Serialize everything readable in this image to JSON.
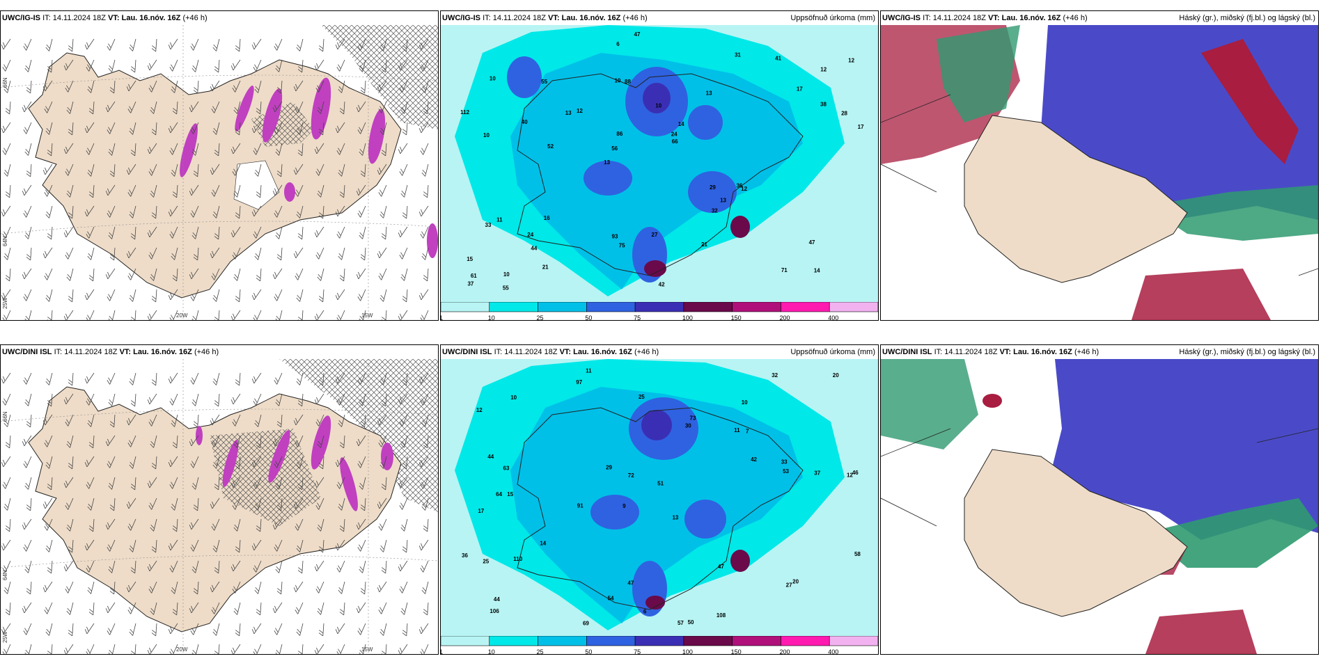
{
  "panels": [
    {
      "id": "p1",
      "model": "UWC/IG-IS",
      "it_label": "IT:",
      "it": "14.11.2024 18Z",
      "vt_label": "VT:",
      "vt": "Lau. 16.nóv. 16Z",
      "lead": "(+46 h)",
      "right_title": "",
      "type": "wind"
    },
    {
      "id": "p2",
      "model": "UWC/IG-IS",
      "it_label": "IT:",
      "it": "14.11.2024 18Z",
      "vt_label": "VT:",
      "vt": "Lau. 16.nóv. 16Z",
      "lead": "(+46 h)",
      "right_title": "Uppsöfnuð úrkoma (mm)",
      "type": "precip"
    },
    {
      "id": "p3",
      "model": "UWC/IG-IS",
      "it_label": "IT:",
      "it": "14.11.2024 18Z",
      "vt_label": "VT:",
      "vt": "Lau. 16.nóv. 16Z",
      "lead": "(+46 h)",
      "right_title": "Háský (gr.), miðský (fj.bl.) og lágský (bl.)",
      "type": "cloud"
    },
    {
      "id": "p4",
      "model": "UWC/DINI ISL",
      "it_label": "IT:",
      "it": "14.11.2024 18Z",
      "vt_label": "VT:",
      "vt": "Lau. 16.nóv. 16Z",
      "lead": "(+46 h)",
      "right_title": "",
      "type": "wind"
    },
    {
      "id": "p5",
      "model": "UWC/DINI ISL",
      "it_label": "IT:",
      "it": "14.11.2024 18Z",
      "vt_label": "VT:",
      "vt": "Lau. 16.nóv. 16Z",
      "lead": "(+46 h)",
      "right_title": "Uppsöfnuð úrkoma (mm)",
      "type": "precip"
    },
    {
      "id": "p6",
      "model": "UWC/DINI ISL",
      "it_label": "IT:",
      "it": "14.11.2024 18Z",
      "vt_label": "VT:",
      "vt": "Lau. 16.nóv. 16Z",
      "lead": "(+46 h)",
      "right_title": "Háský (gr.), miðský (fj.bl.) og lágský (bl.)",
      "type": "cloud"
    }
  ],
  "axis_labels": {
    "lon_20w": "20W",
    "lon_15w": "15W",
    "lat_66n": "66N",
    "lat_64n": "64N",
    "lon_25w": "25W"
  },
  "colorbar": {
    "ticks": [
      "1",
      "10",
      "25",
      "50",
      "75",
      "100",
      "150",
      "200",
      "400"
    ],
    "colors": [
      "#b8f4f4",
      "#00e8e8",
      "#00c0e8",
      "#2f62e0",
      "#3a2fb4",
      "#6a0a4a",
      "#b0107a",
      "#ff1ab0",
      "#f2b2f0"
    ]
  },
  "precip_values_top": [
    "14",
    "10",
    "12",
    "13",
    "13",
    "10",
    "10",
    "10",
    "11",
    "12",
    "15",
    "44",
    "88",
    "14",
    "12",
    "10",
    "6",
    "17",
    "29",
    "38",
    "56",
    "93",
    "86",
    "55",
    "31",
    "16",
    "71",
    "47",
    "36",
    "42",
    "13",
    "40",
    "32",
    "21",
    "28",
    "24",
    "61",
    "75",
    "66",
    "33",
    "17",
    "12",
    "13",
    "21",
    "24",
    "55",
    "37",
    "27",
    "41",
    "47",
    "52",
    "112"
  ],
  "precip_values_bottom": [
    "11",
    "10",
    "12",
    "9",
    "13",
    "15",
    "12",
    "11",
    "17",
    "30",
    "51",
    "106",
    "97",
    "91",
    "57",
    "50",
    "47",
    "32",
    "42",
    "14",
    "63",
    "64",
    "46",
    "37",
    "36",
    "44",
    "72",
    "53",
    "20",
    "25",
    "27",
    "73",
    "110",
    "29",
    "47",
    "58",
    "33",
    "54",
    "20",
    "25",
    "44",
    "69",
    "108",
    "10",
    "6",
    "7"
  ],
  "colors": {
    "land": "#eedcc8",
    "ice_hatch": "#555555",
    "wind_mag": "#c040c0",
    "precip_bg": "#b8f4f4",
    "cloud_high": "#2f9a70",
    "cloud_mid": "#4a4ac8",
    "cloud_low": "#a81d40"
  }
}
